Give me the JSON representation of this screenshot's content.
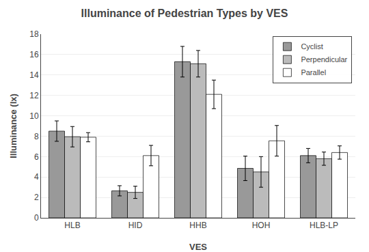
{
  "chart_data": {
    "type": "bar",
    "title": "Illuminance of Pedestrian Types by VES",
    "xlabel": "VES",
    "ylabel": "Illuminance (lx)",
    "categories": [
      "HLB",
      "HID",
      "HHB",
      "HOH",
      "HLB-LP"
    ],
    "series": [
      {
        "name": "Cyclist",
        "color": "#999999",
        "values": [
          8.5,
          2.65,
          15.3,
          4.85,
          6.1
        ],
        "errors": [
          1.0,
          0.5,
          1.5,
          1.2,
          0.7
        ]
      },
      {
        "name": "Perpendicular",
        "color": "#bbbbbb",
        "values": [
          7.95,
          2.5,
          15.1,
          4.5,
          5.8
        ],
        "errors": [
          1.0,
          0.6,
          1.3,
          1.5,
          0.65
        ]
      },
      {
        "name": "Parallel",
        "color": "#ffffff",
        "values": [
          7.9,
          6.1,
          12.1,
          7.55,
          6.4
        ],
        "errors": [
          0.45,
          1.0,
          1.4,
          1.5,
          0.65
        ]
      }
    ],
    "ylim": [
      0,
      18
    ],
    "yticks": [
      0,
      2,
      4,
      6,
      8,
      10,
      12,
      14,
      16,
      18
    ],
    "grid": true,
    "legend": "upper right"
  }
}
